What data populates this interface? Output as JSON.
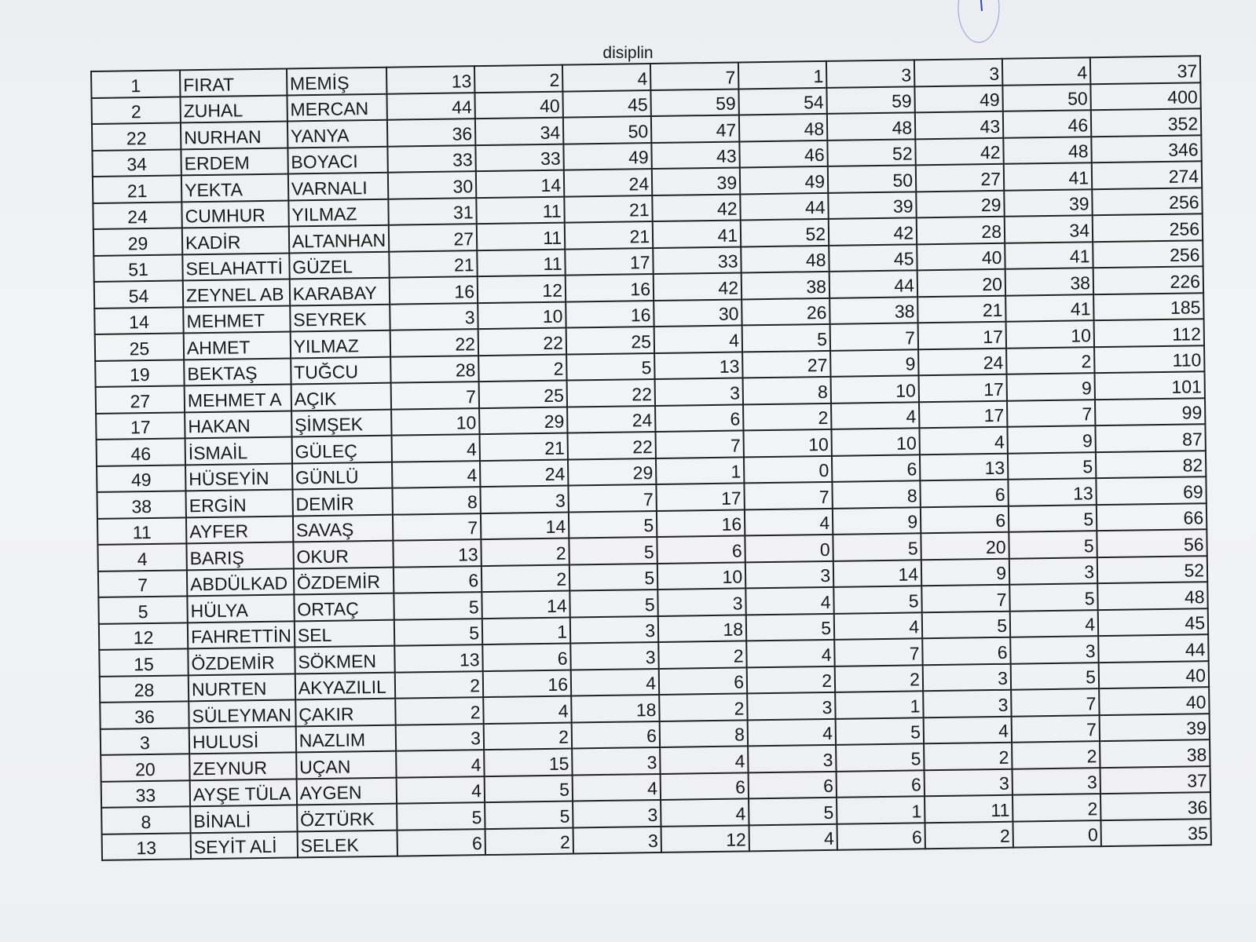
{
  "title": "disiplin",
  "table": {
    "rows": [
      [
        1,
        "FIRAT",
        "MEMİŞ",
        13,
        2,
        4,
        7,
        1,
        3,
        3,
        4,
        37
      ],
      [
        2,
        "ZUHAL",
        "MERCAN",
        44,
        40,
        45,
        59,
        54,
        59,
        49,
        50,
        400
      ],
      [
        22,
        "NURHAN",
        "YANYA",
        36,
        34,
        50,
        47,
        48,
        48,
        43,
        46,
        352
      ],
      [
        34,
        "ERDEM",
        "BOYACI",
        33,
        33,
        49,
        43,
        46,
        52,
        42,
        48,
        346
      ],
      [
        21,
        "YEKTA",
        "VARNALI",
        30,
        14,
        24,
        39,
        49,
        50,
        27,
        41,
        274
      ],
      [
        24,
        "CUMHUR",
        "YILMAZ",
        31,
        11,
        21,
        42,
        44,
        39,
        29,
        39,
        256
      ],
      [
        29,
        "KADİR",
        "ALTANHAN",
        27,
        11,
        21,
        41,
        52,
        42,
        28,
        34,
        256
      ],
      [
        51,
        "SELAHATTİ",
        "GÜZEL",
        21,
        11,
        17,
        33,
        48,
        45,
        40,
        41,
        256
      ],
      [
        54,
        "ZEYNEL AB",
        "KARABAY",
        16,
        12,
        16,
        42,
        38,
        44,
        20,
        38,
        226
      ],
      [
        14,
        "MEHMET",
        "SEYREK",
        3,
        10,
        16,
        30,
        26,
        38,
        21,
        41,
        185
      ],
      [
        25,
        "AHMET",
        "YILMAZ",
        22,
        22,
        25,
        4,
        5,
        7,
        17,
        10,
        112
      ],
      [
        19,
        "BEKTAŞ",
        "TUĞCU",
        28,
        2,
        5,
        13,
        27,
        9,
        24,
        2,
        110
      ],
      [
        27,
        "MEHMET A",
        "AÇIK",
        7,
        25,
        22,
        3,
        8,
        10,
        17,
        9,
        101
      ],
      [
        17,
        "HAKAN",
        "ŞİMŞEK",
        10,
        29,
        24,
        6,
        2,
        4,
        17,
        7,
        99
      ],
      [
        46,
        "İSMAİL",
        "GÜLEÇ",
        4,
        21,
        22,
        7,
        10,
        10,
        4,
        9,
        87
      ],
      [
        49,
        "HÜSEYİN",
        "GÜNLÜ",
        4,
        24,
        29,
        1,
        0,
        6,
        13,
        5,
        82
      ],
      [
        38,
        "ERGİN",
        "DEMİR",
        8,
        3,
        7,
        17,
        7,
        8,
        6,
        13,
        69
      ],
      [
        11,
        "AYFER",
        "SAVAŞ",
        7,
        14,
        5,
        16,
        4,
        9,
        6,
        5,
        66
      ],
      [
        4,
        "BARIŞ",
        "OKUR",
        13,
        2,
        5,
        6,
        0,
        5,
        20,
        5,
        56
      ],
      [
        7,
        "ABDÜLKAD",
        "ÖZDEMİR",
        6,
        2,
        5,
        10,
        3,
        14,
        9,
        3,
        52
      ],
      [
        5,
        "HÜLYA",
        "ORTAÇ",
        5,
        14,
        5,
        3,
        4,
        5,
        7,
        5,
        48
      ],
      [
        12,
        "FAHRETTİN",
        "SEL",
        5,
        1,
        3,
        18,
        5,
        4,
        5,
        4,
        45
      ],
      [
        15,
        "ÖZDEMİR",
        "SÖKMEN",
        13,
        6,
        3,
        2,
        4,
        7,
        6,
        3,
        44
      ],
      [
        28,
        "NURTEN",
        "AKYAZILIL",
        2,
        16,
        4,
        6,
        2,
        2,
        3,
        5,
        40
      ],
      [
        36,
        "SÜLEYMAN",
        "ÇAKIR",
        2,
        4,
        18,
        2,
        3,
        1,
        3,
        7,
        40
      ],
      [
        3,
        "HULUSİ",
        "NAZLIM",
        3,
        2,
        6,
        8,
        4,
        5,
        4,
        7,
        39
      ],
      [
        20,
        "ZEYNUR",
        "UÇAN",
        4,
        15,
        3,
        4,
        3,
        5,
        2,
        2,
        38
      ],
      [
        33,
        "AYŞE TÜLA",
        "AYGEN",
        4,
        5,
        4,
        6,
        6,
        6,
        3,
        3,
        37
      ],
      [
        8,
        "BİNALİ",
        "ÖZTÜRK",
        5,
        5,
        3,
        4,
        5,
        1,
        11,
        2,
        36
      ],
      [
        13,
        "SEYİT ALİ",
        "SELEK",
        6,
        2,
        3,
        12,
        4,
        6,
        2,
        0,
        35
      ]
    ]
  }
}
